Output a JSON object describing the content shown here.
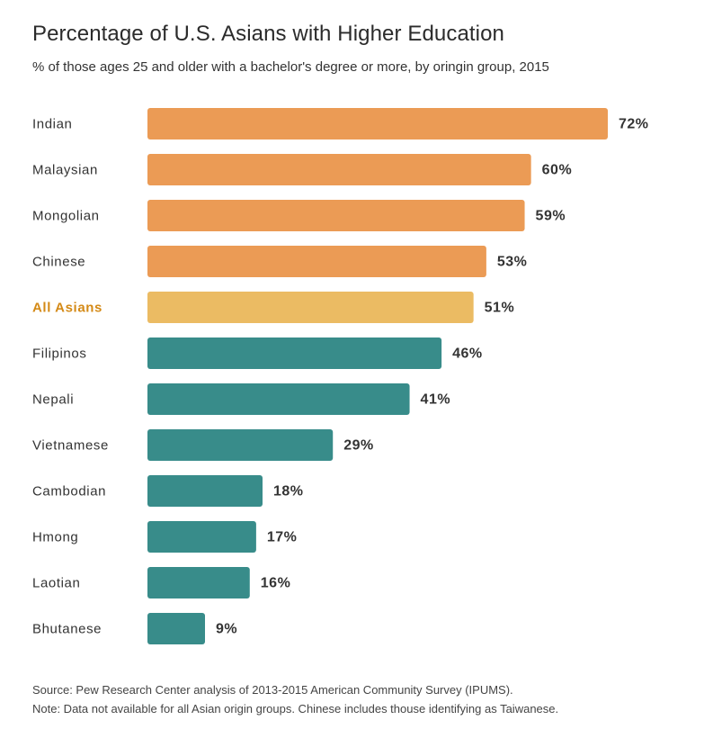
{
  "chart_data": {
    "type": "bar",
    "orientation": "horizontal",
    "title": "Percentage of U.S. Asians with Higher Education",
    "subtitle": "% of those ages 25 and older with a bachelor's degree or more, by oringin group, 2015",
    "categories": [
      "Indian",
      "Malaysian",
      "Mongolian",
      "Chinese",
      "All Asians",
      "Filipinos",
      "Nepali",
      "Vietnamese",
      "Cambodian",
      "Hmong",
      "Laotian",
      "Bhutanese"
    ],
    "values": [
      72,
      60,
      59,
      53,
      51,
      46,
      41,
      29,
      18,
      17,
      16,
      9
    ],
    "value_labels": [
      "72%",
      "60%",
      "59%",
      "53%",
      "51%",
      "46%",
      "41%",
      "29%",
      "18%",
      "17%",
      "16%",
      "9%"
    ],
    "bar_groups": [
      "above",
      "above",
      "above",
      "above",
      "all",
      "below",
      "below",
      "below",
      "below",
      "below",
      "below",
      "below"
    ],
    "colors": {
      "above": "#eb9b55",
      "all": "#ebbb63",
      "below": "#388c8a",
      "all_label": "#d48a17",
      "label": "#333333"
    },
    "xlim": [
      0,
      72
    ],
    "grid": false,
    "legend": "none"
  },
  "footer": {
    "source": "Source: Pew Research Center analysis of 2013-2015 American Community Survey (IPUMS).",
    "note": "Note: Data not available for all Asian origin groups. Chinese includes thouse identifying as Taiwanese."
  }
}
